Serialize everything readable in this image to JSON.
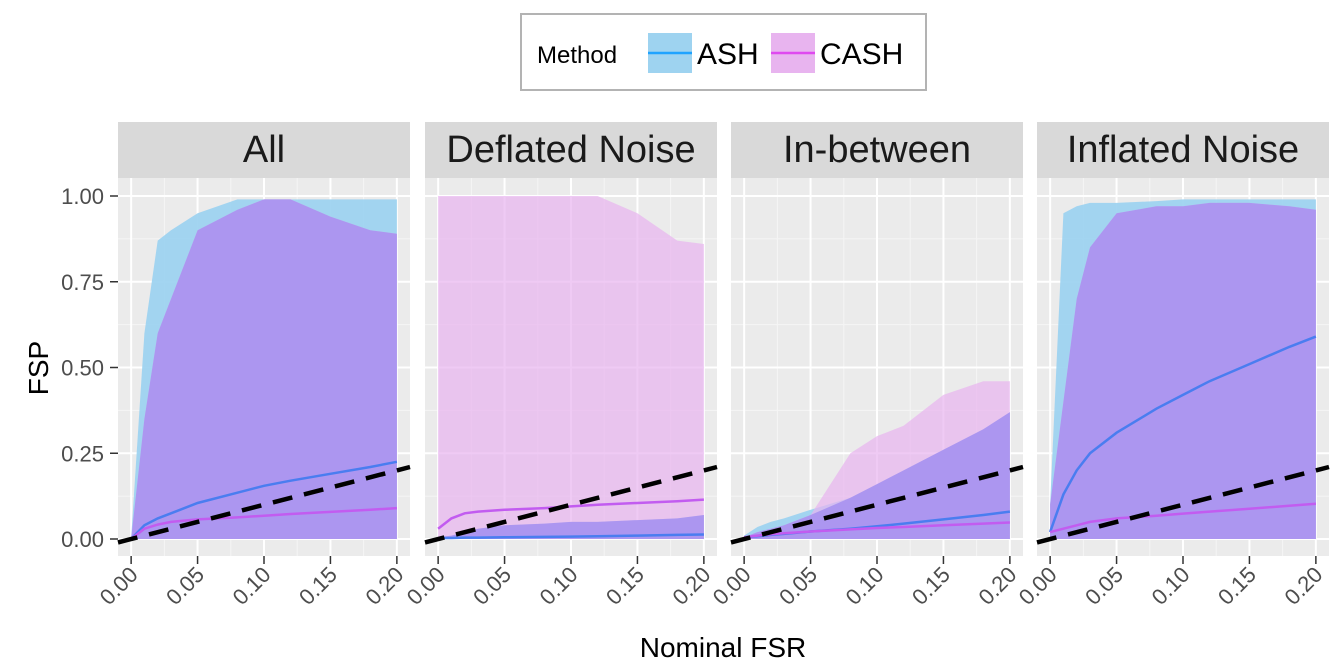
{
  "chart_data": {
    "type": "area",
    "xlabel": "Nominal FSR",
    "ylabel": "FSP",
    "xlim": [
      0,
      0.2
    ],
    "ylim": [
      0,
      1
    ],
    "x_ticks": [
      "0.00",
      "0.05",
      "0.10",
      "0.15",
      "0.20"
    ],
    "y_ticks": [
      "0.00",
      "0.25",
      "0.50",
      "0.75",
      "1.00"
    ],
    "grid": true,
    "legend": {
      "title": "Method",
      "placement": "top-center",
      "entries": [
        {
          "name": "ASH",
          "color": "#1fa3ff",
          "fill": "#9ed3f0"
        },
        {
          "name": "CASH",
          "color": "#df49f0",
          "fill": "#e8b4ef"
        }
      ]
    },
    "reference_line": {
      "type": "y=x",
      "style": "dashed",
      "color": "#000000"
    },
    "x": [
      0.0,
      0.01,
      0.02,
      0.03,
      0.05,
      0.08,
      0.1,
      0.12,
      0.15,
      0.18,
      0.2
    ],
    "panels": [
      {
        "label": "All",
        "series": [
          {
            "name": "ASH",
            "mean": [
              0.0,
              0.04,
              0.06,
              0.075,
              0.105,
              0.135,
              0.155,
              0.17,
              0.19,
              0.21,
              0.225
            ],
            "lower": [
              0,
              0,
              0,
              0,
              0,
              0,
              0,
              0,
              0,
              0,
              0
            ],
            "upper": [
              0.0,
              0.6,
              0.87,
              0.9,
              0.95,
              0.99,
              0.99,
              0.99,
              0.99,
              0.99,
              0.99
            ]
          },
          {
            "name": "CASH",
            "mean": [
              0.0,
              0.03,
              0.042,
              0.05,
              0.057,
              0.063,
              0.068,
              0.073,
              0.079,
              0.085,
              0.09
            ],
            "lower": [
              0,
              0,
              0,
              0,
              0,
              0,
              0,
              0,
              0,
              0,
              0
            ],
            "upper": [
              0.0,
              0.35,
              0.6,
              0.7,
              0.9,
              0.96,
              0.99,
              0.99,
              0.94,
              0.9,
              0.89
            ]
          }
        ]
      },
      {
        "label": "Deflated Noise",
        "series": [
          {
            "name": "ASH",
            "mean": [
              0.003,
              0.003,
              0.004,
              0.004,
              0.005,
              0.006,
              0.007,
              0.008,
              0.01,
              0.012,
              0.013
            ],
            "lower": [
              0,
              0,
              0,
              0,
              0,
              0,
              0,
              0,
              0,
              0,
              0
            ],
            "upper": [
              0.005,
              0.01,
              0.02,
              0.03,
              0.04,
              0.045,
              0.05,
              0.05,
              0.055,
              0.06,
              0.07
            ]
          },
          {
            "name": "CASH",
            "mean": [
              0.03,
              0.06,
              0.075,
              0.08,
              0.085,
              0.09,
              0.095,
              0.1,
              0.105,
              0.11,
              0.115
            ],
            "lower": [
              0,
              0,
              0,
              0,
              0,
              0,
              0,
              0,
              0,
              0,
              0
            ],
            "upper": [
              1.0,
              1.0,
              1.0,
              1.0,
              1.0,
              1.0,
              1.0,
              1.0,
              0.95,
              0.87,
              0.86
            ]
          }
        ]
      },
      {
        "label": "In-between",
        "series": [
          {
            "name": "ASH",
            "mean": [
              0.005,
              0.008,
              0.012,
              0.015,
              0.022,
              0.03,
              0.037,
              0.045,
              0.057,
              0.07,
              0.08
            ],
            "lower": [
              0,
              0,
              0,
              0,
              0,
              0,
              0,
              0,
              0,
              0,
              0
            ],
            "upper": [
              0.01,
              0.035,
              0.05,
              0.06,
              0.085,
              0.12,
              0.16,
              0.2,
              0.26,
              0.32,
              0.37
            ]
          },
          {
            "name": "CASH",
            "mean": [
              0.005,
              0.01,
              0.014,
              0.017,
              0.022,
              0.028,
              0.032,
              0.035,
              0.04,
              0.045,
              0.048
            ],
            "lower": [
              0,
              0,
              0,
              0,
              0,
              0,
              0,
              0,
              0,
              0,
              0
            ],
            "upper": [
              0.005,
              0.02,
              0.03,
              0.04,
              0.07,
              0.25,
              0.3,
              0.33,
              0.42,
              0.46,
              0.46
            ]
          }
        ]
      },
      {
        "label": "Inflated Noise",
        "series": [
          {
            "name": "ASH",
            "mean": [
              0.02,
              0.13,
              0.2,
              0.25,
              0.31,
              0.38,
              0.42,
              0.46,
              0.51,
              0.56,
              0.59
            ],
            "lower": [
              0,
              0,
              0,
              0,
              0,
              0,
              0,
              0,
              0,
              0,
              0
            ],
            "upper": [
              0.1,
              0.95,
              0.97,
              0.98,
              0.98,
              0.985,
              0.99,
              0.99,
              0.99,
              0.99,
              0.99
            ]
          },
          {
            "name": "CASH",
            "mean": [
              0.02,
              0.03,
              0.04,
              0.05,
              0.06,
              0.068,
              0.074,
              0.08,
              0.088,
              0.097,
              0.103
            ],
            "lower": [
              0,
              0,
              0,
              0,
              0,
              0,
              0,
              0,
              0,
              0,
              0
            ],
            "upper": [
              0.1,
              0.4,
              0.7,
              0.85,
              0.95,
              0.97,
              0.97,
              0.98,
              0.98,
              0.97,
              0.96
            ]
          }
        ]
      }
    ]
  }
}
